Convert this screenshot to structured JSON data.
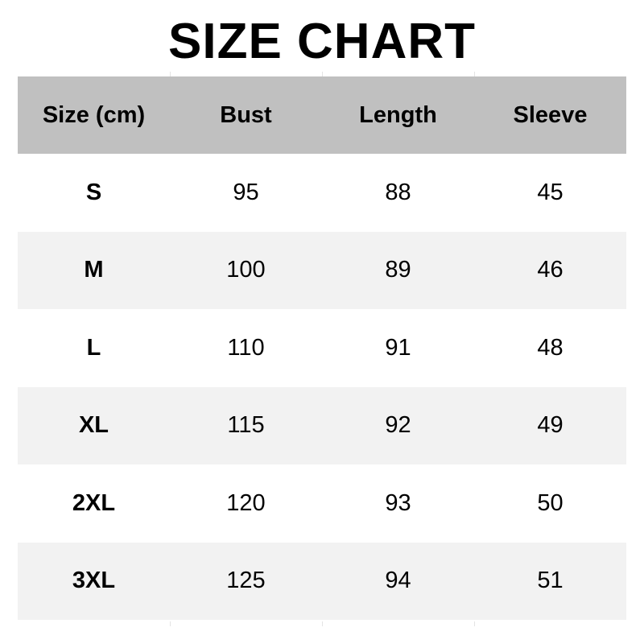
{
  "title": "SIZE CHART",
  "table": {
    "headers": [
      "Size (cm)",
      "Bust",
      "Length",
      "Sleeve"
    ],
    "rows": [
      [
        "S",
        "95",
        "88",
        "45"
      ],
      [
        "M",
        "100",
        "89",
        "46"
      ],
      [
        "L",
        "110",
        "91",
        "48"
      ],
      [
        "XL",
        "115",
        "92",
        "49"
      ],
      [
        "2XL",
        "120",
        "93",
        "50"
      ],
      [
        "3XL",
        "125",
        "94",
        "51"
      ]
    ]
  },
  "colors": {
    "header_bg": "#c0c0c0",
    "alt_row_bg": "#f2f2f2",
    "text": "#000000"
  }
}
